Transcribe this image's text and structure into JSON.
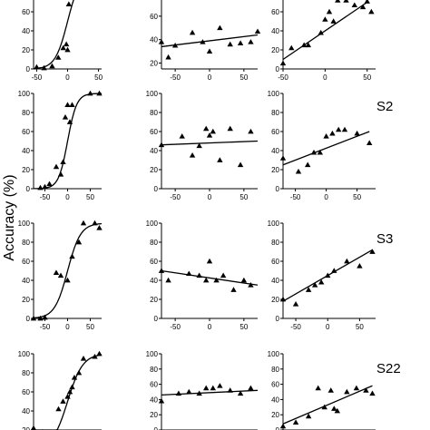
{
  "figure": {
    "ylabel": "Accuracy (%)",
    "row_labels": [
      "",
      "S2",
      "S3",
      "S22"
    ]
  },
  "chart_data": [
    {
      "type": "scatter",
      "row": 0,
      "col": 0,
      "xlim": [
        -55,
        55
      ],
      "ylim": [
        0,
        80
      ],
      "xticks": [
        -50,
        0,
        50
      ],
      "yticks": [
        0,
        20,
        40,
        60
      ],
      "fit": "sigmoid",
      "fit_params": {
        "x0": 0,
        "k": 0.1,
        "ymax": 100
      },
      "points": [
        [
          -50,
          2
        ],
        [
          -38,
          1
        ],
        [
          -25,
          3
        ],
        [
          -15,
          12
        ],
        [
          -7,
          22
        ],
        [
          -2,
          26
        ],
        [
          0,
          20
        ],
        [
          2,
          68
        ]
      ]
    },
    {
      "type": "scatter",
      "row": 0,
      "col": 1,
      "xlim": [
        -70,
        70
      ],
      "ylim": [
        15,
        80
      ],
      "xticks": [
        -50,
        0,
        50
      ],
      "yticks": [
        20,
        40,
        60
      ],
      "fit": "line",
      "fit_line": [
        [
          -70,
          34
        ],
        [
          70,
          44
        ]
      ],
      "points": [
        [
          -70,
          38
        ],
        [
          -60,
          25
        ],
        [
          -50,
          35
        ],
        [
          -25,
          46
        ],
        [
          -10,
          38
        ],
        [
          0,
          30
        ],
        [
          15,
          50
        ],
        [
          30,
          36
        ],
        [
          45,
          37
        ],
        [
          60,
          38
        ],
        [
          70,
          47
        ]
      ]
    },
    {
      "type": "scatter",
      "row": 0,
      "col": 2,
      "xlim": [
        -50,
        60
      ],
      "ylim": [
        0,
        80
      ],
      "xticks": [
        -50,
        0,
        50
      ],
      "yticks": [
        0,
        20,
        40,
        60
      ],
      "fit": "line",
      "fit_line": [
        [
          -50,
          10
        ],
        [
          50,
          70
        ]
      ],
      "points": [
        [
          -50,
          6
        ],
        [
          -40,
          22
        ],
        [
          -25,
          25
        ],
        [
          -20,
          25
        ],
        [
          -5,
          38
        ],
        [
          0,
          52
        ],
        [
          5,
          60
        ],
        [
          10,
          50
        ],
        [
          15,
          72
        ],
        [
          25,
          72
        ],
        [
          35,
          67
        ],
        [
          45,
          65
        ],
        [
          50,
          71
        ],
        [
          55,
          60
        ]
      ]
    },
    {
      "type": "scatter",
      "row": 1,
      "col": 0,
      "xlim": [
        -75,
        75
      ],
      "ylim": [
        0,
        100
      ],
      "xticks": [
        -50,
        0,
        50
      ],
      "yticks": [
        0,
        20,
        40,
        60,
        80,
        100
      ],
      "fit": "sigmoid",
      "fit_params": {
        "x0": 0,
        "k": 0.1,
        "ymax": 100
      },
      "points": [
        [
          -60,
          1
        ],
        [
          -50,
          2
        ],
        [
          -40,
          5
        ],
        [
          -25,
          23
        ],
        [
          -15,
          15
        ],
        [
          -10,
          28
        ],
        [
          -5,
          75
        ],
        [
          0,
          88
        ],
        [
          5,
          70
        ],
        [
          10,
          88
        ],
        [
          50,
          100
        ],
        [
          70,
          100
        ]
      ]
    },
    {
      "type": "scatter",
      "row": 1,
      "col": 1,
      "xlim": [
        -70,
        70
      ],
      "ylim": [
        0,
        100
      ],
      "xticks": [
        -50,
        0,
        50
      ],
      "yticks": [
        0,
        20,
        40,
        60,
        80,
        100
      ],
      "fit": "line",
      "fit_line": [
        [
          -70,
          46
        ],
        [
          70,
          50
        ]
      ],
      "points": [
        [
          -70,
          46
        ],
        [
          -40,
          55
        ],
        [
          -25,
          35
        ],
        [
          -15,
          45
        ],
        [
          -5,
          63
        ],
        [
          0,
          56
        ],
        [
          5,
          60
        ],
        [
          15,
          30
        ],
        [
          30,
          63
        ],
        [
          45,
          25
        ],
        [
          60,
          60
        ]
      ]
    },
    {
      "type": "scatter",
      "row": 1,
      "col": 2,
      "xlim": [
        -70,
        80
      ],
      "ylim": [
        0,
        100
      ],
      "xticks": [
        -50,
        0,
        50
      ],
      "yticks": [
        0,
        20,
        40,
        60,
        80,
        100
      ],
      "fit": "line",
      "fit_line": [
        [
          -70,
          25
        ],
        [
          70,
          60
        ]
      ],
      "points": [
        [
          -70,
          32
        ],
        [
          -45,
          18
        ],
        [
          -30,
          25
        ],
        [
          -20,
          38
        ],
        [
          -10,
          38
        ],
        [
          0,
          55
        ],
        [
          10,
          58
        ],
        [
          20,
          62
        ],
        [
          30,
          62
        ],
        [
          50,
          58
        ],
        [
          70,
          48
        ]
      ]
    },
    {
      "type": "scatter",
      "row": 2,
      "col": 0,
      "xlim": [
        -75,
        75
      ],
      "ylim": [
        0,
        100
      ],
      "xticks": [
        -50,
        0,
        50
      ],
      "yticks": [
        0,
        20,
        40,
        60,
        80,
        100
      ],
      "fit": "sigmoid",
      "fit_params": {
        "x0": 0,
        "k": 0.07,
        "ymax": 100
      },
      "points": [
        [
          -75,
          0
        ],
        [
          -60,
          0
        ],
        [
          -50,
          1
        ],
        [
          -25,
          48
        ],
        [
          -15,
          45
        ],
        [
          0,
          40
        ],
        [
          10,
          65
        ],
        [
          25,
          80
        ],
        [
          35,
          100
        ],
        [
          60,
          100
        ],
        [
          70,
          95
        ]
      ]
    },
    {
      "type": "scatter",
      "row": 2,
      "col": 1,
      "xlim": [
        -70,
        70
      ],
      "ylim": [
        0,
        100
      ],
      "xticks": [
        -50,
        0,
        50
      ],
      "yticks": [
        0,
        20,
        40,
        60,
        80,
        100
      ],
      "fit": "line",
      "fit_line": [
        [
          -70,
          50
        ],
        [
          70,
          35
        ]
      ],
      "points": [
        [
          -70,
          50
        ],
        [
          -60,
          40
        ],
        [
          -30,
          47
        ],
        [
          -15,
          45
        ],
        [
          -5,
          40
        ],
        [
          0,
          60
        ],
        [
          10,
          40
        ],
        [
          20,
          45
        ],
        [
          35,
          30
        ],
        [
          50,
          40
        ],
        [
          60,
          35
        ]
      ]
    },
    {
      "type": "scatter",
      "row": 2,
      "col": 2,
      "xlim": [
        -70,
        75
      ],
      "ylim": [
        0,
        100
      ],
      "xticks": [
        -50,
        0,
        50
      ],
      "yticks": [
        0,
        20,
        40,
        60,
        80,
        100
      ],
      "fit": "line",
      "fit_line": [
        [
          -70,
          18
        ],
        [
          70,
          72
        ]
      ],
      "points": [
        [
          -70,
          20
        ],
        [
          -50,
          15
        ],
        [
          -30,
          30
        ],
        [
          -20,
          35
        ],
        [
          -10,
          38
        ],
        [
          0,
          45
        ],
        [
          10,
          50
        ],
        [
          30,
          60
        ],
        [
          50,
          55
        ],
        [
          70,
          70
        ]
      ]
    },
    {
      "type": "scatter",
      "row": 3,
      "col": 0,
      "xlim": [
        -75,
        75
      ],
      "ylim": [
        20,
        100
      ],
      "xticks": [],
      "yticks": [
        20,
        40,
        60,
        80,
        100
      ],
      "fit": "sigmoid",
      "fit_params": {
        "x0": 0,
        "k": 0.06,
        "ymax": 100
      },
      "points": [
        [
          -75,
          22
        ],
        [
          -55,
          18
        ],
        [
          -20,
          42
        ],
        [
          -10,
          50
        ],
        [
          0,
          55
        ],
        [
          5,
          60
        ],
        [
          10,
          65
        ],
        [
          15,
          75
        ],
        [
          25,
          80
        ],
        [
          35,
          95
        ],
        [
          60,
          97
        ],
        [
          70,
          100
        ]
      ]
    },
    {
      "type": "scatter",
      "row": 3,
      "col": 1,
      "xlim": [
        -70,
        70
      ],
      "ylim": [
        0,
        100
      ],
      "xticks": [],
      "yticks": [
        0,
        20,
        40,
        60,
        80,
        100
      ],
      "fit": "line",
      "fit_line": [
        [
          -70,
          46
        ],
        [
          70,
          52
        ]
      ],
      "points": [
        [
          -70,
          38
        ],
        [
          -45,
          48
        ],
        [
          -30,
          50
        ],
        [
          -15,
          48
        ],
        [
          -5,
          55
        ],
        [
          5,
          55
        ],
        [
          15,
          58
        ],
        [
          30,
          52
        ],
        [
          45,
          48
        ],
        [
          60,
          55
        ]
      ]
    },
    {
      "type": "scatter",
      "row": 3,
      "col": 2,
      "xlim": [
        -70,
        75
      ],
      "ylim": [
        0,
        100
      ],
      "xticks": [],
      "yticks": [
        0,
        20,
        40,
        60,
        80,
        100
      ],
      "fit": "line",
      "fit_line": [
        [
          -70,
          8
        ],
        [
          70,
          58
        ]
      ],
      "points": [
        [
          -70,
          5
        ],
        [
          -50,
          10
        ],
        [
          -30,
          18
        ],
        [
          -15,
          55
        ],
        [
          -5,
          30
        ],
        [
          5,
          52
        ],
        [
          10,
          28
        ],
        [
          15,
          25
        ],
        [
          30,
          50
        ],
        [
          45,
          55
        ],
        [
          60,
          52
        ],
        [
          70,
          48
        ]
      ]
    }
  ]
}
